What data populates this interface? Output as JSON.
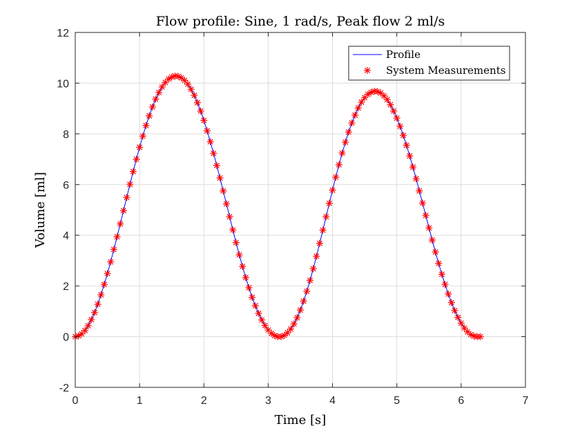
{
  "chart_data": {
    "type": "line",
    "title": "Flow profile: Sine, 1 rad/s, Peak flow 2 ml/s",
    "xlabel": "Time [s]",
    "ylabel": "Volume [ml]",
    "xlim": [
      0,
      7
    ],
    "ylim": [
      -2,
      12
    ],
    "xticks": [
      "0",
      "1",
      "2",
      "3",
      "4",
      "5",
      "6",
      "7"
    ],
    "yticks": [
      "-2",
      "0",
      "2",
      "4",
      "6",
      "8",
      "10",
      "12"
    ],
    "grid": true,
    "legend_position": "top-right",
    "series": [
      {
        "name": "Profile",
        "style": "line",
        "color": "#0000ff",
        "x": [
          0,
          0.05,
          0.1,
          0.15,
          0.2,
          0.25,
          0.3,
          0.35,
          0.4,
          0.45,
          0.5,
          0.55,
          0.6,
          0.65,
          0.7,
          0.75,
          0.8,
          0.85,
          0.9,
          0.95,
          1.0,
          1.05,
          1.1,
          1.15,
          1.2,
          1.25,
          1.3,
          1.35,
          1.4,
          1.45,
          1.5,
          1.55,
          1.6,
          1.65,
          1.7,
          1.75,
          1.8,
          1.85,
          1.9,
          1.95,
          2.0,
          2.05,
          2.1,
          2.15,
          2.2,
          2.25,
          2.3,
          2.35,
          2.4,
          2.45,
          2.5,
          2.55,
          2.6,
          2.65,
          2.7,
          2.75,
          2.8,
          2.85,
          2.9,
          2.95,
          3.0,
          3.05,
          3.1,
          3.15,
          3.2,
          3.25,
          3.3,
          3.35,
          3.4,
          3.45,
          3.5,
          3.55,
          3.6,
          3.65,
          3.7,
          3.75,
          3.8,
          3.85,
          3.9,
          3.95,
          4.0,
          4.05,
          4.1,
          4.15,
          4.2,
          4.25,
          4.3,
          4.35,
          4.4,
          4.45,
          4.5,
          4.55,
          4.6,
          4.65,
          4.7,
          4.75,
          4.8,
          4.85,
          4.9,
          4.95,
          5.0,
          5.05,
          5.1,
          5.15,
          5.2,
          5.25,
          5.3,
          5.35,
          5.4,
          5.45,
          5.5,
          5.55,
          5.6,
          5.65,
          5.7,
          5.75,
          5.8,
          5.85,
          5.9,
          5.95,
          6.0,
          6.05,
          6.1,
          6.15,
          6.2,
          6.25,
          6.3
        ],
        "y": [
          0,
          0.03,
          0.11,
          0.24,
          0.43,
          0.67,
          0.95,
          1.28,
          1.65,
          2.06,
          2.49,
          2.95,
          3.44,
          3.94,
          4.45,
          4.97,
          5.49,
          6.01,
          6.51,
          7.0,
          7.47,
          7.91,
          8.33,
          8.71,
          9.06,
          9.37,
          9.63,
          9.85,
          10.03,
          10.16,
          10.24,
          10.28,
          10.27,
          10.21,
          10.11,
          9.96,
          9.76,
          9.52,
          9.23,
          8.9,
          8.53,
          8.12,
          7.69,
          7.23,
          6.75,
          6.26,
          5.75,
          5.24,
          4.73,
          4.21,
          3.71,
          3.23,
          2.77,
          2.33,
          1.93,
          1.55,
          1.22,
          0.92,
          0.66,
          0.44,
          0.26,
          0.13,
          0.04,
          0.0,
          0.0,
          0.05,
          0.15,
          0.3,
          0.5,
          0.75,
          1.05,
          1.4,
          1.79,
          2.22,
          2.68,
          3.17,
          3.68,
          4.2,
          4.73,
          5.26,
          5.78,
          6.29,
          6.78,
          7.24,
          7.67,
          8.07,
          8.43,
          8.74,
          9.02,
          9.25,
          9.43,
          9.56,
          9.64,
          9.68,
          9.67,
          9.61,
          9.5,
          9.35,
          9.15,
          8.9,
          8.62,
          8.3,
          7.94,
          7.55,
          7.13,
          6.69,
          6.23,
          5.75,
          5.27,
          4.78,
          4.29,
          3.81,
          3.34,
          2.89,
          2.46,
          2.06,
          1.68,
          1.34,
          1.03,
          0.76,
          0.53,
          0.34,
          0.19,
          0.08,
          0.02,
          0.0,
          0.0
        ]
      },
      {
        "name": "System Measurements",
        "style": "marker",
        "marker": "asterisk",
        "color": "#ff0000",
        "x": [
          0.0,
          0.05,
          0.1,
          0.15,
          0.2,
          0.25,
          0.3,
          0.35,
          0.4,
          0.45,
          0.5,
          0.55,
          0.6,
          0.65,
          0.7,
          0.75,
          0.8,
          0.85,
          0.9,
          0.95,
          1.0,
          1.05,
          1.1,
          1.15,
          1.2,
          1.25,
          1.3,
          1.35,
          1.4,
          1.45,
          1.5,
          1.55,
          1.6,
          1.65,
          1.7,
          1.75,
          1.8,
          1.85,
          1.9,
          1.95,
          2.0,
          2.05,
          2.1,
          2.15,
          2.2,
          2.25,
          2.3,
          2.35,
          2.4,
          2.45,
          2.5,
          2.55,
          2.6,
          2.65,
          2.7,
          2.75,
          2.8,
          2.85,
          2.9,
          2.95,
          3.0,
          3.05,
          3.1,
          3.15,
          3.2,
          3.25,
          3.3,
          3.35,
          3.4,
          3.45,
          3.5,
          3.55,
          3.6,
          3.65,
          3.7,
          3.75,
          3.8,
          3.85,
          3.9,
          3.95,
          4.0,
          4.05,
          4.1,
          4.15,
          4.2,
          4.25,
          4.3,
          4.35,
          4.4,
          4.45,
          4.5,
          4.55,
          4.6,
          4.65,
          4.7,
          4.75,
          4.8,
          4.85,
          4.9,
          4.95,
          5.0,
          5.05,
          5.1,
          5.15,
          5.2,
          5.25,
          5.3,
          5.35,
          5.4,
          5.45,
          5.5,
          5.55,
          5.6,
          5.65,
          5.7,
          5.75,
          5.8,
          5.85,
          5.9,
          5.95,
          6.0,
          6.05,
          6.1,
          6.15,
          6.2,
          6.25,
          6.3
        ],
        "y": [
          0.0,
          0.03,
          0.11,
          0.24,
          0.43,
          0.67,
          0.95,
          1.28,
          1.65,
          2.06,
          2.49,
          2.95,
          3.44,
          3.94,
          4.45,
          4.97,
          5.49,
          6.01,
          6.51,
          7.0,
          7.47,
          7.91,
          8.33,
          8.71,
          9.06,
          9.37,
          9.63,
          9.85,
          10.03,
          10.16,
          10.24,
          10.28,
          10.27,
          10.21,
          10.11,
          9.96,
          9.76,
          9.52,
          9.23,
          8.9,
          8.53,
          8.12,
          7.69,
          7.23,
          6.75,
          6.26,
          5.75,
          5.24,
          4.73,
          4.21,
          3.71,
          3.23,
          2.77,
          2.33,
          1.93,
          1.55,
          1.22,
          0.92,
          0.66,
          0.44,
          0.26,
          0.13,
          0.04,
          0.0,
          0.0,
          0.05,
          0.15,
          0.3,
          0.5,
          0.75,
          1.05,
          1.4,
          1.79,
          2.22,
          2.68,
          3.17,
          3.68,
          4.2,
          4.73,
          5.26,
          5.78,
          6.29,
          6.78,
          7.24,
          7.67,
          8.07,
          8.43,
          8.74,
          9.02,
          9.25,
          9.43,
          9.56,
          9.64,
          9.68,
          9.67,
          9.61,
          9.5,
          9.35,
          9.15,
          8.9,
          8.62,
          8.3,
          7.94,
          7.55,
          7.13,
          6.69,
          6.23,
          5.75,
          5.27,
          4.78,
          4.29,
          3.81,
          3.34,
          2.89,
          2.46,
          2.06,
          1.68,
          1.34,
          1.03,
          0.76,
          0.53,
          0.34,
          0.19,
          0.08,
          0.02,
          0.0,
          0.0
        ]
      }
    ]
  }
}
